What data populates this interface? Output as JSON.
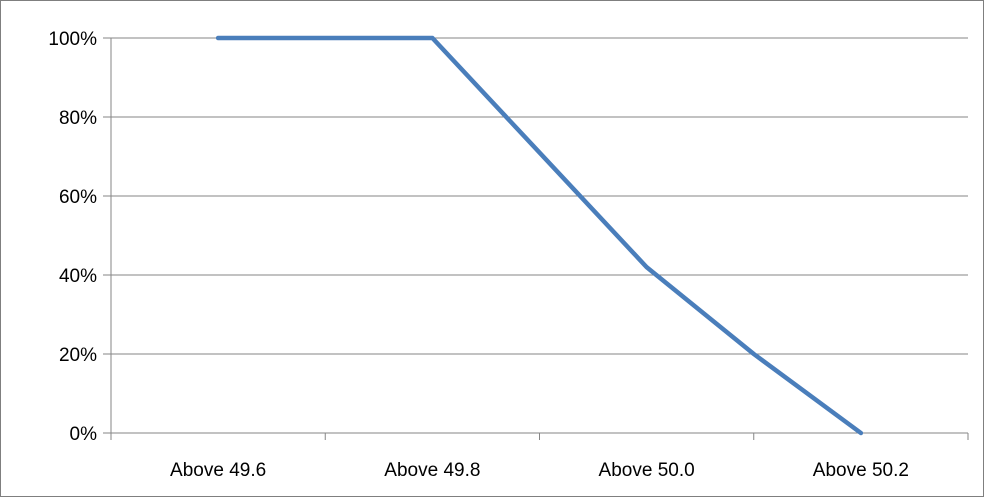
{
  "chart_data": {
    "type": "line",
    "categories": [
      "Above 49.6",
      "Above 49.8",
      "Above 50.0",
      "Above 50.2"
    ],
    "x": [
      0,
      1,
      2,
      2.5,
      3
    ],
    "values": [
      100,
      100,
      42,
      20,
      0
    ],
    "ylim": [
      0,
      100
    ],
    "yticks": [
      0,
      20,
      40,
      60,
      80,
      100
    ],
    "ytick_labels": [
      "0%",
      "20%",
      "40%",
      "60%",
      "80%",
      "100%"
    ],
    "grid": true,
    "legend": "none",
    "line_color": "#4a7ebb",
    "grid_color": "#868686"
  }
}
